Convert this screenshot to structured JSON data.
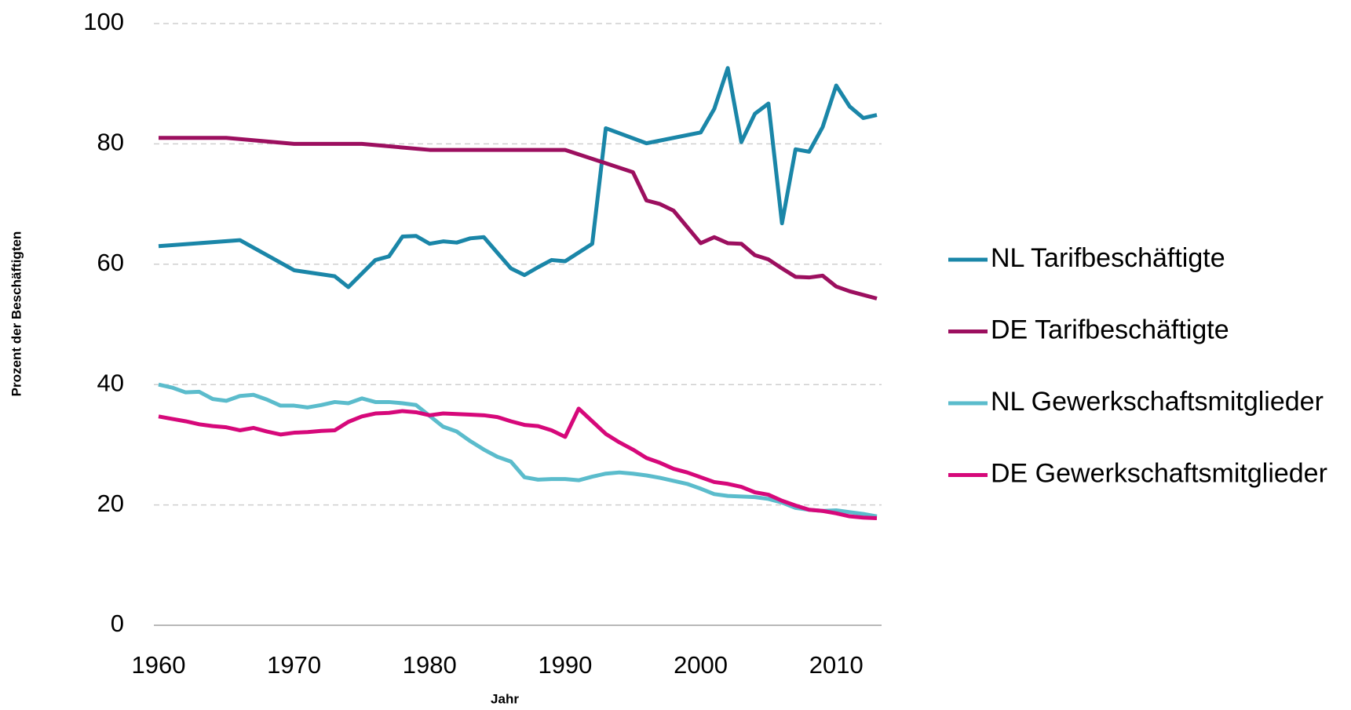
{
  "chart_data": {
    "type": "line",
    "xlabel": "Jahr",
    "ylabel": "Prozent der Beschäftigten",
    "xlim": [
      1960,
      2013
    ],
    "xticks": [
      1960,
      1970,
      1980,
      1990,
      2000,
      2010
    ],
    "ylim": [
      0,
      100
    ],
    "yticks": [
      0,
      20,
      40,
      60,
      80,
      100
    ],
    "grid": true,
    "legend": "right",
    "series": [
      {
        "name": "NL Tarifbeschäftigte",
        "color": "#1a86a8",
        "x": [
          1960,
          1966,
          1970,
          1973,
          1974,
          1976,
          1977,
          1978,
          1979,
          1980,
          1981,
          1982,
          1983,
          1984,
          1986,
          1987,
          1988,
          1989,
          1990,
          1992,
          1993,
          1996,
          2000,
          2001,
          2002,
          2003,
          2004,
          2005,
          2006,
          2007,
          2008,
          2009,
          2010,
          2011,
          2012,
          2013
        ],
        "values": [
          63,
          64,
          59,
          58,
          56.2,
          60.7,
          61.3,
          64.6,
          64.7,
          63.4,
          63.8,
          63.6,
          64.3,
          64.5,
          59.3,
          58.2,
          59.5,
          60.7,
          60.5,
          63.4,
          82.6,
          80.1,
          81.9,
          85.8,
          92.6,
          80.3,
          85,
          86.7,
          66.8,
          79.1,
          78.7,
          82.8,
          89.7,
          86.2,
          84.3,
          84.8
        ]
      },
      {
        "name": "DE Tarifbeschäftigte",
        "color": "#9c0f5f",
        "x": [
          1960,
          1965,
          1970,
          1975,
          1980,
          1990,
          1995,
          1996,
          1997,
          1998,
          1999,
          2000,
          2001,
          2002,
          2003,
          2004,
          2005,
          2006,
          2007,
          2008,
          2009,
          2010,
          2011,
          2012,
          2013
        ],
        "values": [
          81,
          81,
          80,
          80,
          79,
          79,
          75.3,
          70.6,
          70,
          68.9,
          66.2,
          63.5,
          64.5,
          63.5,
          63.4,
          61.5,
          60.8,
          59.3,
          57.9,
          57.8,
          58.1,
          56.3,
          55.5,
          54.9,
          54.3
        ]
      },
      {
        "name": "NL Gewerkschaftsmitglieder",
        "color": "#5bbccc",
        "x": [
          1960,
          1961,
          1962,
          1963,
          1964,
          1965,
          1966,
          1967,
          1968,
          1969,
          1970,
          1971,
          1972,
          1973,
          1974,
          1975,
          1976,
          1977,
          1978,
          1979,
          1980,
          1981,
          1982,
          1983,
          1984,
          1985,
          1986,
          1987,
          1988,
          1989,
          1990,
          1991,
          1992,
          1993,
          1994,
          1995,
          1996,
          1997,
          1998,
          1999,
          2000,
          2001,
          2002,
          2003,
          2004,
          2005,
          2006,
          2007,
          2008,
          2009,
          2010,
          2011,
          2012,
          2013
        ],
        "values": [
          40,
          39.5,
          38.7,
          38.8,
          37.6,
          37.3,
          38.1,
          38.3,
          37.5,
          36.5,
          36.5,
          36.2,
          36.6,
          37.1,
          36.9,
          37.7,
          37.1,
          37.1,
          36.9,
          36.6,
          34.8,
          33,
          32.2,
          30.6,
          29.2,
          28,
          27.2,
          24.6,
          24.2,
          24.3,
          24.3,
          24.1,
          24.7,
          25.2,
          25.4,
          25.2,
          24.9,
          24.5,
          24,
          23.5,
          22.7,
          21.8,
          21.5,
          21.4,
          21.3,
          21,
          20.4,
          19.5,
          19.2,
          19,
          19.1,
          18.8,
          18.5,
          18.1
        ]
      },
      {
        "name": "DE Gewerkschaftsmitglieder",
        "color": "#d6087a",
        "x": [
          1960,
          1961,
          1962,
          1963,
          1964,
          1965,
          1966,
          1967,
          1968,
          1969,
          1970,
          1971,
          1972,
          1973,
          1974,
          1975,
          1976,
          1977,
          1978,
          1979,
          1980,
          1981,
          1982,
          1983,
          1984,
          1985,
          1986,
          1987,
          1988,
          1989,
          1990,
          1991,
          1992,
          1993,
          1994,
          1995,
          1996,
          1997,
          1998,
          1999,
          2000,
          2001,
          2002,
          2003,
          2004,
          2005,
          2006,
          2007,
          2008,
          2009,
          2010,
          2011,
          2012,
          2013
        ],
        "values": [
          34.7,
          34.3,
          33.9,
          33.4,
          33.1,
          32.9,
          32.4,
          32.8,
          32.2,
          31.7,
          32,
          32.1,
          32.3,
          32.4,
          33.8,
          34.7,
          35.2,
          35.3,
          35.6,
          35.4,
          34.9,
          35.2,
          35.1,
          35,
          34.9,
          34.6,
          33.9,
          33.3,
          33.1,
          32.4,
          31.3,
          36,
          33.9,
          31.8,
          30.4,
          29.2,
          27.8,
          27,
          26,
          25.4,
          24.6,
          23.8,
          23.5,
          23,
          22.1,
          21.7,
          20.7,
          19.9,
          19.2,
          19,
          18.6,
          18.1,
          17.9,
          17.8
        ]
      }
    ]
  }
}
